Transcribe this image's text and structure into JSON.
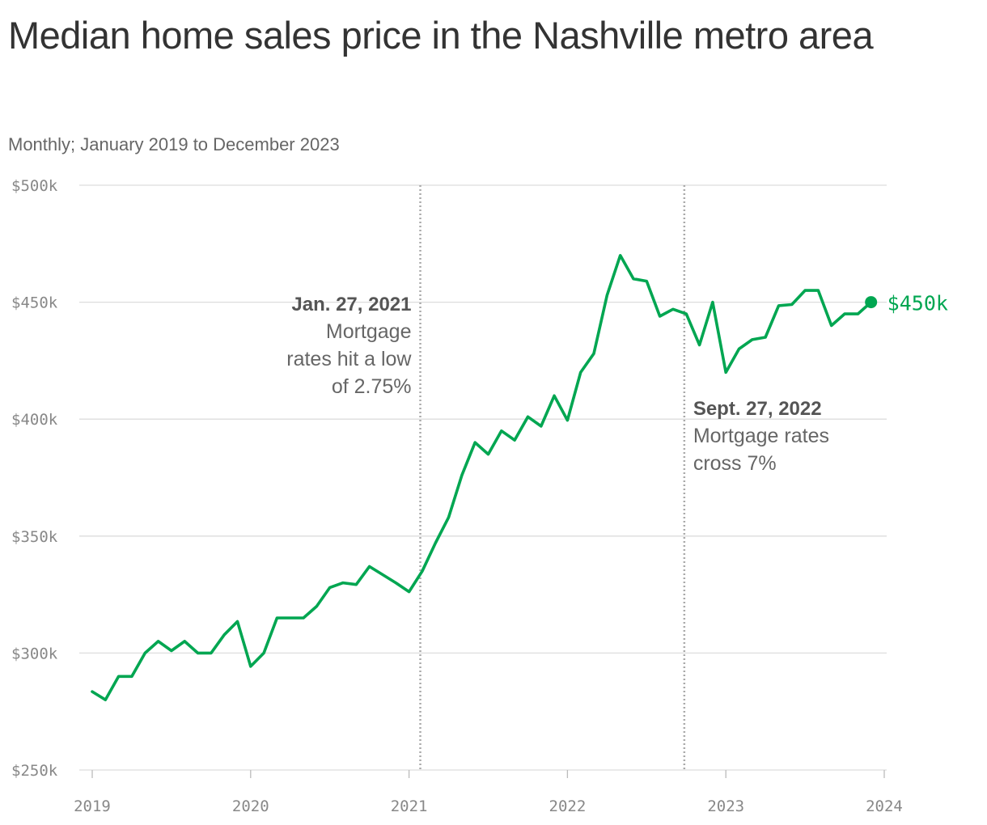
{
  "title": "Median home sales price in the Nashville metro area",
  "subtitle": "Monthly; January 2019 to December 2023",
  "colors": {
    "line": "#00a651",
    "grid": "#dddddd",
    "marker_line": "#aaaaaa"
  },
  "chart_data": {
    "type": "line",
    "title": "Median home sales price in the Nashville metro area",
    "subtitle": "Monthly; January 2019 to December 2023",
    "x_ticks": [
      "2019",
      "2020",
      "2021",
      "2022",
      "2023",
      "2024"
    ],
    "y_ticks": [
      "$250k",
      "$300k",
      "$350k",
      "$400k",
      "$450k",
      "$500k"
    ],
    "ylim": [
      250000,
      500000
    ],
    "xlim": [
      "2019-01",
      "2024-01"
    ],
    "grid": true,
    "series": [
      {
        "x": [
          "2019-01",
          "2019-02",
          "2019-03",
          "2019-04",
          "2019-05",
          "2019-06",
          "2019-07",
          "2019-08",
          "2019-09",
          "2019-10",
          "2019-11",
          "2019-12",
          "2020-01",
          "2020-02",
          "2020-03",
          "2020-04",
          "2020-05",
          "2020-06",
          "2020-07",
          "2020-08",
          "2020-09",
          "2020-10",
          "2020-11",
          "2020-12",
          "2021-01",
          "2021-02",
          "2021-03",
          "2021-04",
          "2021-05",
          "2021-06",
          "2021-07",
          "2021-08",
          "2021-09",
          "2021-10",
          "2021-11",
          "2021-12",
          "2022-01",
          "2022-02",
          "2022-03",
          "2022-04",
          "2022-05",
          "2022-06",
          "2022-07",
          "2022-08",
          "2022-09",
          "2022-10",
          "2022-11",
          "2022-12",
          "2023-01",
          "2023-02",
          "2023-03",
          "2023-04",
          "2023-05",
          "2023-06",
          "2023-07",
          "2023-08",
          "2023-09",
          "2023-10",
          "2023-11",
          "2023-12"
        ],
        "values": [
          283500,
          280000,
          290000,
          290000,
          300000,
          305000,
          301000,
          305000,
          300000,
          300000,
          307800,
          313500,
          294300,
          300000,
          315000,
          315000,
          315000,
          320000,
          328000,
          330000,
          329300,
          337000,
          333500,
          330000,
          326200,
          335000,
          347000,
          358000,
          376000,
          390000,
          385000,
          395000,
          391000,
          401000,
          397000,
          410000,
          399500,
          420000,
          428000,
          453000,
          470000,
          460000,
          459000,
          444000,
          447000,
          445000,
          431700,
          450000,
          420000,
          430000,
          434000,
          435000,
          448500,
          449000,
          455000,
          455000,
          440000,
          445000,
          445000,
          450000
        ]
      }
    ],
    "end_label": "$450k",
    "annotations": [
      {
        "date": "2021-01-27",
        "title": "Jan. 27, 2021",
        "text": [
          "Mortgage",
          "rates hit a low",
          "of 2.75%"
        ]
      },
      {
        "date": "2022-09-27",
        "title": "Sept. 27, 2022",
        "text": [
          "Mortgage rates",
          "cross 7%"
        ]
      }
    ]
  }
}
